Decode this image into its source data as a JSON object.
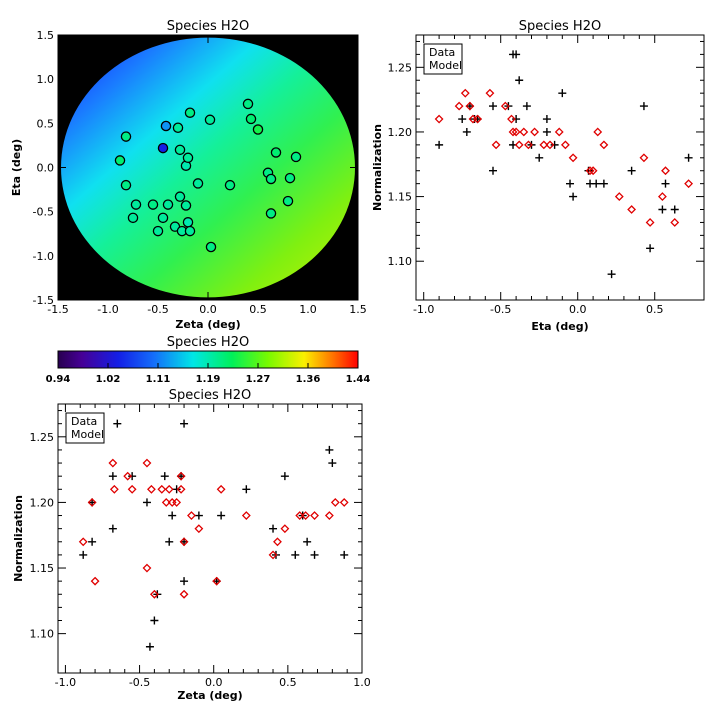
{
  "colors": {
    "data": "#000000",
    "model": "#e00000",
    "frame": "#000000"
  },
  "chart_data": [
    {
      "id": "map",
      "type": "heatmap",
      "title": "Species H2O",
      "xlabel": "Zeta (deg)",
      "ylabel": "Eta (deg)",
      "xlim": [
        -1.5,
        1.5
      ],
      "ylim": [
        -1.5,
        1.5
      ],
      "xticks": [
        "-1.5",
        "-1.0",
        "-0.5",
        "0.0",
        "0.5",
        "1.0",
        "1.5"
      ],
      "yticks": [
        "-1.5",
        "-1.0",
        "-0.5",
        "0.0",
        "0.5",
        "1.0",
        "1.5"
      ],
      "field_radius": 1.47,
      "background": "#000000",
      "points": [
        {
          "x": -0.82,
          "y": 0.35,
          "v": 1.21
        },
        {
          "x": -0.42,
          "y": 0.47,
          "v": 1.12
        },
        {
          "x": -0.45,
          "y": 0.22,
          "v": 1.04
        },
        {
          "x": -0.3,
          "y": 0.45,
          "v": 1.2
        },
        {
          "x": -0.18,
          "y": 0.62,
          "v": 1.21
        },
        {
          "x": 0.02,
          "y": 0.54,
          "v": 1.2
        },
        {
          "x": 0.4,
          "y": 0.72,
          "v": 1.21
        },
        {
          "x": 0.43,
          "y": 0.55,
          "v": 1.22
        },
        {
          "x": 0.5,
          "y": 0.43,
          "v": 1.24
        },
        {
          "x": -0.88,
          "y": 0.08,
          "v": 1.22
        },
        {
          "x": -0.28,
          "y": 0.2,
          "v": 1.2
        },
        {
          "x": -0.22,
          "y": 0.02,
          "v": 1.19
        },
        {
          "x": -0.2,
          "y": 0.11,
          "v": 1.2
        },
        {
          "x": 0.68,
          "y": 0.17,
          "v": 1.22
        },
        {
          "x": 0.88,
          "y": 0.12,
          "v": 1.21
        },
        {
          "x": -0.82,
          "y": -0.2,
          "v": 1.21
        },
        {
          "x": -0.1,
          "y": -0.18,
          "v": 1.2
        },
        {
          "x": 0.22,
          "y": -0.2,
          "v": 1.21
        },
        {
          "x": 0.6,
          "y": -0.06,
          "v": 1.21
        },
        {
          "x": 0.63,
          "y": -0.13,
          "v": 1.21
        },
        {
          "x": 0.82,
          "y": -0.12,
          "v": 1.21
        },
        {
          "x": -0.72,
          "y": -0.42,
          "v": 1.2
        },
        {
          "x": -0.55,
          "y": -0.42,
          "v": 1.21
        },
        {
          "x": -0.4,
          "y": -0.42,
          "v": 1.2
        },
        {
          "x": -0.28,
          "y": -0.33,
          "v": 1.2
        },
        {
          "x": -0.22,
          "y": -0.43,
          "v": 1.2
        },
        {
          "x": -0.75,
          "y": -0.57,
          "v": 1.2
        },
        {
          "x": -0.45,
          "y": -0.57,
          "v": 1.2
        },
        {
          "x": -0.2,
          "y": -0.62,
          "v": 1.19
        },
        {
          "x": -0.33,
          "y": -0.67,
          "v": 1.2
        },
        {
          "x": -0.26,
          "y": -0.72,
          "v": 1.2
        },
        {
          "x": -0.18,
          "y": -0.72,
          "v": 1.2
        },
        {
          "x": -0.5,
          "y": -0.72,
          "v": 1.2
        },
        {
          "x": 0.8,
          "y": -0.38,
          "v": 1.21
        },
        {
          "x": 0.63,
          "y": -0.52,
          "v": 1.21
        },
        {
          "x": 0.03,
          "y": -0.9,
          "v": 1.21
        }
      ]
    },
    {
      "id": "colorbar",
      "type": "heatmap",
      "title": "Species H2O",
      "range": [
        0.94,
        1.44
      ],
      "ticks": [
        "0.94",
        "1.02",
        "1.11",
        "1.19",
        "1.27",
        "1.36",
        "1.44"
      ]
    },
    {
      "id": "eta_norm",
      "type": "scatter",
      "title": "Species H2O",
      "xlabel": "Eta (deg)",
      "ylabel": "Normalization",
      "xlim": [
        -1.05,
        0.82
      ],
      "ylim": [
        1.07,
        1.275
      ],
      "xticks": [
        "-1.0",
        "-0.5",
        "0.0",
        "0.5"
      ],
      "yticks": [
        "1.10",
        "1.15",
        "1.20",
        "1.25"
      ],
      "legend": {
        "position": "top-left",
        "entries": [
          "Data",
          "Model"
        ]
      },
      "series": [
        {
          "name": "Data",
          "marker": "plus",
          "points": [
            [
              -0.9,
              1.19
            ],
            [
              -0.75,
              1.21
            ],
            [
              -0.72,
              1.2
            ],
            [
              -0.7,
              1.22
            ],
            [
              -0.67,
              1.21
            ],
            [
              -0.65,
              1.21
            ],
            [
              -0.55,
              1.17
            ],
            [
              -0.55,
              1.22
            ],
            [
              -0.45,
              1.22
            ],
            [
              -0.42,
              1.26
            ],
            [
              -0.4,
              1.26
            ],
            [
              -0.38,
              1.24
            ],
            [
              -0.42,
              1.19
            ],
            [
              -0.4,
              1.21
            ],
            [
              -0.33,
              1.22
            ],
            [
              -0.3,
              1.19
            ],
            [
              -0.25,
              1.18
            ],
            [
              -0.2,
              1.21
            ],
            [
              -0.2,
              1.2
            ],
            [
              -0.15,
              1.19
            ],
            [
              -0.1,
              1.23
            ],
            [
              -0.05,
              1.16
            ],
            [
              -0.03,
              1.15
            ],
            [
              0.07,
              1.17
            ],
            [
              0.08,
              1.16
            ],
            [
              0.12,
              1.16
            ],
            [
              0.17,
              1.16
            ],
            [
              0.22,
              1.09
            ],
            [
              0.35,
              1.17
            ],
            [
              0.43,
              1.22
            ],
            [
              0.47,
              1.11
            ],
            [
              0.55,
              1.14
            ],
            [
              0.57,
              1.16
            ],
            [
              0.63,
              1.14
            ],
            [
              0.72,
              1.18
            ]
          ]
        },
        {
          "name": "Model",
          "marker": "diamond",
          "points": [
            [
              -0.9,
              1.21
            ],
            [
              -0.77,
              1.22
            ],
            [
              -0.73,
              1.23
            ],
            [
              -0.7,
              1.22
            ],
            [
              -0.68,
              1.21
            ],
            [
              -0.65,
              1.21
            ],
            [
              -0.57,
              1.23
            ],
            [
              -0.53,
              1.19
            ],
            [
              -0.47,
              1.22
            ],
            [
              -0.43,
              1.21
            ],
            [
              -0.42,
              1.2
            ],
            [
              -0.4,
              1.2
            ],
            [
              -0.38,
              1.19
            ],
            [
              -0.35,
              1.2
            ],
            [
              -0.32,
              1.19
            ],
            [
              -0.28,
              1.2
            ],
            [
              -0.22,
              1.19
            ],
            [
              -0.18,
              1.19
            ],
            [
              -0.12,
              1.2
            ],
            [
              -0.08,
              1.19
            ],
            [
              -0.03,
              1.18
            ],
            [
              0.08,
              1.17
            ],
            [
              0.1,
              1.17
            ],
            [
              0.13,
              1.2
            ],
            [
              0.17,
              1.19
            ],
            [
              0.27,
              1.15
            ],
            [
              0.35,
              1.14
            ],
            [
              0.43,
              1.18
            ],
            [
              0.47,
              1.13
            ],
            [
              0.55,
              1.15
            ],
            [
              0.57,
              1.17
            ],
            [
              0.63,
              1.13
            ],
            [
              0.72,
              1.16
            ]
          ]
        }
      ]
    },
    {
      "id": "zeta_norm",
      "type": "scatter",
      "title": "Species H2O",
      "xlabel": "Zeta (deg)",
      "ylabel": "Normalization",
      "xlim": [
        -1.05,
        1.0
      ],
      "ylim": [
        1.07,
        1.275
      ],
      "xticks": [
        "-1.0",
        "-0.5",
        "0.0",
        "0.5",
        "1.0"
      ],
      "yticks": [
        "1.10",
        "1.15",
        "1.20",
        "1.25"
      ],
      "legend": {
        "position": "top-left",
        "entries": [
          "Data",
          "Model"
        ]
      },
      "series": [
        {
          "name": "Data",
          "marker": "plus",
          "points": [
            [
              -0.88,
              1.16
            ],
            [
              -0.82,
              1.17
            ],
            [
              -0.82,
              1.2
            ],
            [
              -0.68,
              1.22
            ],
            [
              -0.68,
              1.18
            ],
            [
              -0.65,
              1.26
            ],
            [
              -0.55,
              1.22
            ],
            [
              -0.45,
              1.2
            ],
            [
              -0.43,
              1.09
            ],
            [
              -0.4,
              1.11
            ],
            [
              -0.38,
              1.13
            ],
            [
              -0.33,
              1.22
            ],
            [
              -0.3,
              1.17
            ],
            [
              -0.28,
              1.19
            ],
            [
              -0.25,
              1.21
            ],
            [
              -0.22,
              1.22
            ],
            [
              -0.2,
              1.14
            ],
            [
              -0.2,
              1.26
            ],
            [
              -0.2,
              1.17
            ],
            [
              -0.1,
              1.19
            ],
            [
              0.02,
              1.14
            ],
            [
              0.05,
              1.19
            ],
            [
              0.22,
              1.21
            ],
            [
              0.4,
              1.18
            ],
            [
              0.42,
              1.16
            ],
            [
              0.48,
              1.22
            ],
            [
              0.55,
              1.16
            ],
            [
              0.6,
              1.19
            ],
            [
              0.63,
              1.17
            ],
            [
              0.68,
              1.16
            ],
            [
              0.78,
              1.24
            ],
            [
              0.8,
              1.23
            ],
            [
              0.88,
              1.16
            ]
          ]
        },
        {
          "name": "Model",
          "marker": "diamond",
          "points": [
            [
              -0.88,
              1.17
            ],
            [
              -0.82,
              1.2
            ],
            [
              -0.8,
              1.14
            ],
            [
              -0.68,
              1.23
            ],
            [
              -0.67,
              1.21
            ],
            [
              -0.58,
              1.22
            ],
            [
              -0.55,
              1.21
            ],
            [
              -0.45,
              1.23
            ],
            [
              -0.45,
              1.15
            ],
            [
              -0.42,
              1.21
            ],
            [
              -0.4,
              1.13
            ],
            [
              -0.35,
              1.21
            ],
            [
              -0.32,
              1.2
            ],
            [
              -0.3,
              1.21
            ],
            [
              -0.28,
              1.2
            ],
            [
              -0.25,
              1.2
            ],
            [
              -0.22,
              1.22
            ],
            [
              -0.22,
              1.21
            ],
            [
              -0.2,
              1.17
            ],
            [
              -0.2,
              1.13
            ],
            [
              -0.15,
              1.19
            ],
            [
              -0.1,
              1.18
            ],
            [
              0.02,
              1.14
            ],
            [
              0.05,
              1.21
            ],
            [
              0.22,
              1.19
            ],
            [
              0.4,
              1.16
            ],
            [
              0.43,
              1.17
            ],
            [
              0.48,
              1.18
            ],
            [
              0.58,
              1.19
            ],
            [
              0.62,
              1.19
            ],
            [
              0.68,
              1.19
            ],
            [
              0.78,
              1.19
            ],
            [
              0.82,
              1.2
            ],
            [
              0.88,
              1.2
            ]
          ]
        }
      ]
    }
  ]
}
